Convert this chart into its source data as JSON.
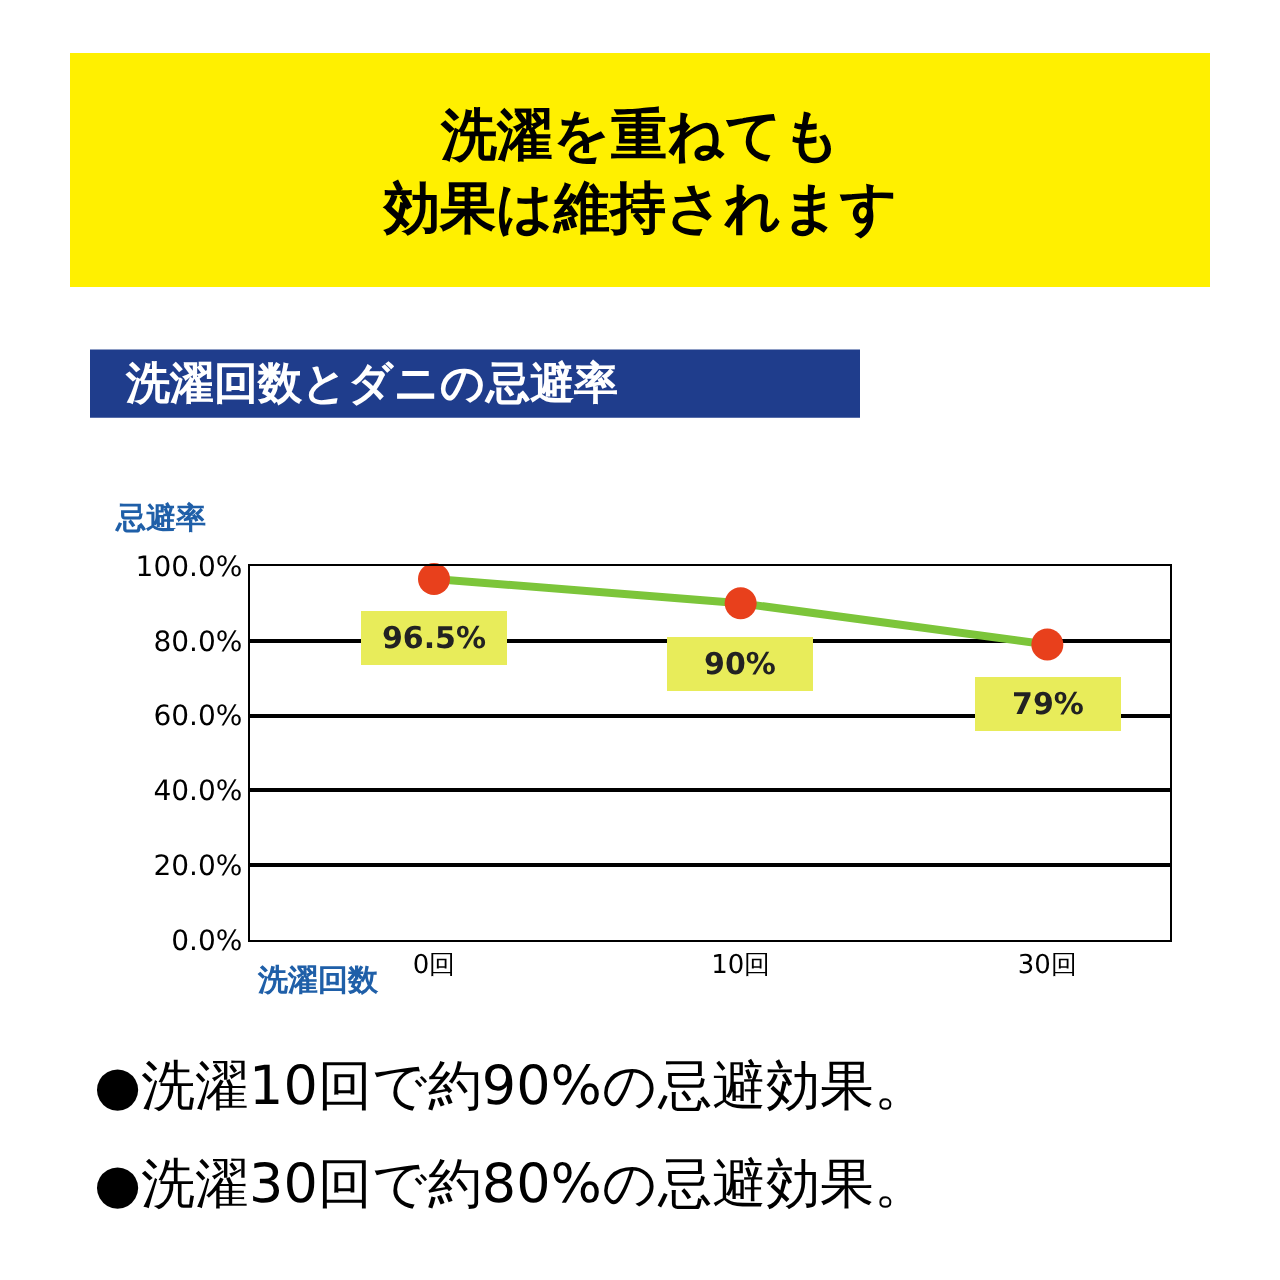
{
  "chart_data": {
    "type": "line",
    "title": "洗濯を重ねても効果は維持されます",
    "subtitle": "洗濯回数とダニの忌避率",
    "ylabel": "忌避率",
    "xlabel": "洗濯回数",
    "categories": [
      "0回",
      "10回",
      "30回"
    ],
    "series": [
      {
        "color": "#7cc53a",
        "colors": [
          "#e8401c",
          "#e8401c",
          "#e8401c"
        ],
        "values": [
          96.5,
          90,
          79
        ],
        "value_labels": [
          "96.5%",
          "90%",
          "79%"
        ]
      }
    ],
    "ylim": [
      0,
      100
    ],
    "yticks": [
      {
        "value": 0,
        "label": "0.0%"
      },
      {
        "value": 20,
        "label": "20.0%"
      },
      {
        "value": 40,
        "label": "40.0%"
      },
      {
        "value": 60,
        "label": "60.0%"
      },
      {
        "value": 80,
        "label": "80.0%"
      },
      {
        "value": 100,
        "label": "100.0%"
      }
    ],
    "grid": "y",
    "marker": "circle",
    "line_style": "solid",
    "annotations": [
      "●洗濯10回で約90%の忌避効果。",
      "●洗濯30回で約80%の忌避効果。"
    ]
  }
}
